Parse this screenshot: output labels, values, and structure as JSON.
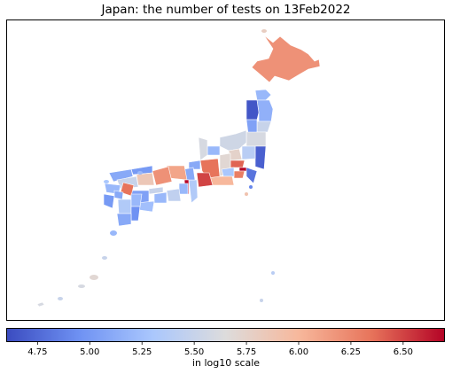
{
  "title": "Japan: the number of tests on 13Feb2022",
  "colorbar": {
    "label": "in log10 scale",
    "colormap": "coolwarm",
    "range": [
      4.6,
      6.7
    ],
    "ticks": [
      "4.75",
      "5.00",
      "5.25",
      "5.50",
      "5.75",
      "6.00",
      "6.25",
      "6.50"
    ],
    "stops": [
      "#3b4cc0",
      "#6f92f3",
      "#aac7fd",
      "#dddcdc",
      "#f7b89c",
      "#e7745b",
      "#b40426"
    ]
  },
  "regions": [
    {
      "name": "Hokkaido",
      "value": 6.2
    },
    {
      "name": "Aomori",
      "value": 5.2
    },
    {
      "name": "Iwate",
      "value": 5.15
    },
    {
      "name": "Akita",
      "value": 4.65
    },
    {
      "name": "Miyagi",
      "value": 5.5
    },
    {
      "name": "Yamagata",
      "value": 5.05
    },
    {
      "name": "Fukushima",
      "value": 5.6
    },
    {
      "name": "Niigata",
      "value": 5.55
    },
    {
      "name": "Ibaraki",
      "value": 4.7
    },
    {
      "name": "Tochigi",
      "value": 5.4
    },
    {
      "name": "Gunma",
      "value": 5.75
    },
    {
      "name": "Saitama",
      "value": 6.4
    },
    {
      "name": "Tokyo",
      "value": 6.7
    },
    {
      "name": "Chiba",
      "value": 4.8
    },
    {
      "name": "Kanagawa",
      "value": 6.3
    },
    {
      "name": "Nagano",
      "value": 5.7
    },
    {
      "name": "Yamanashi",
      "value": 5.3
    },
    {
      "name": "Shizuoka",
      "value": 6.0
    },
    {
      "name": "Toyama",
      "value": 5.2
    },
    {
      "name": "Ishikawa",
      "value": 5.6
    },
    {
      "name": "Fukui",
      "value": 5.1
    },
    {
      "name": "Gifu",
      "value": 6.35
    },
    {
      "name": "Aichi",
      "value": 6.5
    },
    {
      "name": "Mie",
      "value": 5.35
    },
    {
      "name": "Shiga",
      "value": 5.1
    },
    {
      "name": "Kyoto",
      "value": 6.1
    },
    {
      "name": "Osaka",
      "value": 6.7
    },
    {
      "name": "Hyogo",
      "value": 6.2
    },
    {
      "name": "Nara",
      "value": 5.2
    },
    {
      "name": "Wakayama",
      "value": 5.45
    },
    {
      "name": "Tottori",
      "value": 5.0
    },
    {
      "name": "Shimane",
      "value": 5.1
    },
    {
      "name": "Okayama",
      "value": 5.85
    },
    {
      "name": "Hiroshima",
      "value": 5.5
    },
    {
      "name": "Yamaguchi",
      "value": 5.2
    },
    {
      "name": "Tokushima",
      "value": 5.2
    },
    {
      "name": "Kagawa",
      "value": 5.5
    },
    {
      "name": "Ehime",
      "value": 5.05
    },
    {
      "name": "Kochi",
      "value": 5.25
    },
    {
      "name": "Fukuoka",
      "value": 6.35
    },
    {
      "name": "Saga",
      "value": 5.1
    },
    {
      "name": "Nagasaki",
      "value": 5.0
    },
    {
      "name": "Kumamoto",
      "value": 5.35
    },
    {
      "name": "Oita",
      "value": 5.2
    },
    {
      "name": "Miyazaki",
      "value": 4.95
    },
    {
      "name": "Kagoshima",
      "value": 5.1
    },
    {
      "name": "Okinawa",
      "value": 5.6
    }
  ]
}
